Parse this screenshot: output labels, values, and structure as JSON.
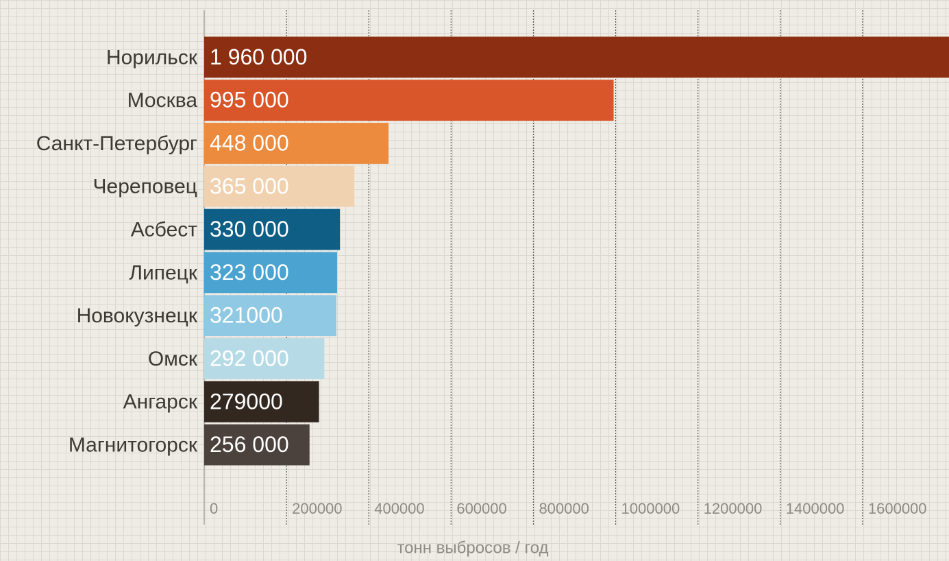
{
  "chart_data": {
    "type": "bar",
    "orientation": "horizontal",
    "x_label": "тонн выбросов / год",
    "categories": [
      "Норильск",
      "Москва",
      "Санкт-Петербург",
      "Череповец",
      "Асбест",
      "Липецк",
      "Новокузнецк",
      "Омск",
      "Ангарск",
      "Магнитогорск"
    ],
    "values": [
      1960000,
      995000,
      448000,
      365000,
      330000,
      323000,
      321000,
      292000,
      279000,
      256000
    ],
    "value_labels": [
      "1 960 000",
      "995 000",
      "448 000",
      "365 000",
      "330 000",
      "323 000",
      "321000",
      "292 000",
      "279000",
      "256 000"
    ],
    "colors": [
      "#8b2e12",
      "#d9552a",
      "#ec8a3d",
      "#f1d2b0",
      "#0f5e86",
      "#4aa3d0",
      "#8fc9e3",
      "#b6dbe6",
      "#33281f",
      "#4c423d"
    ],
    "xlim": [
      0,
      1810000
    ],
    "xticks": [
      0,
      200000,
      400000,
      600000,
      800000,
      1000000,
      1200000,
      1400000,
      1600000
    ],
    "grid": true
  }
}
